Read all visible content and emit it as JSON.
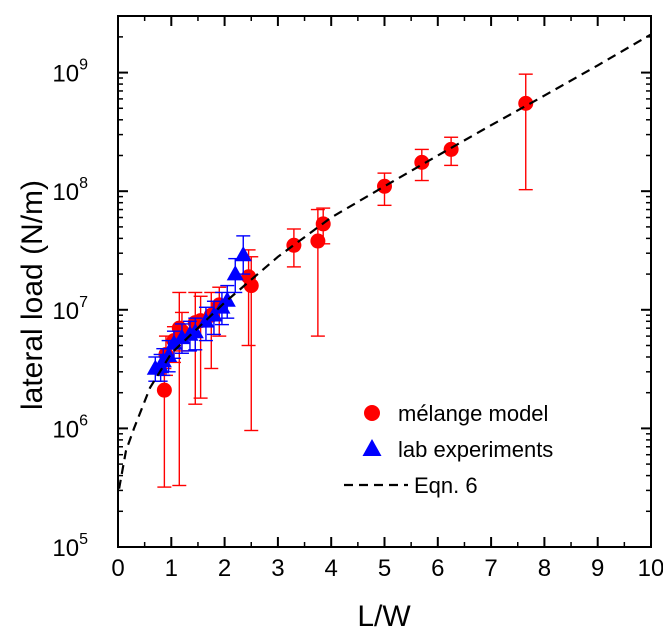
{
  "chart_data": {
    "type": "scatter",
    "xlabel": "L/W",
    "ylabel": "lateral load (N/m)",
    "xlim": [
      0,
      10
    ],
    "ylim": [
      100000,
      3000000000
    ],
    "yscale": "log",
    "x_ticks": [
      "0",
      "1",
      "2",
      "3",
      "4",
      "5",
      "6",
      "7",
      "8",
      "9",
      "10"
    ],
    "y_ticks": [
      {
        "base": "10",
        "exp": "5",
        "value": 100000
      },
      {
        "base": "10",
        "exp": "6",
        "value": 1000000
      },
      {
        "base": "10",
        "exp": "7",
        "value": 10000000
      },
      {
        "base": "10",
        "exp": "8",
        "value": 100000000
      },
      {
        "base": "10",
        "exp": "9",
        "value": 1000000000
      }
    ],
    "grid": false,
    "legend_position": "bottom-right",
    "series": [
      {
        "name": "mélange model",
        "marker": "circle",
        "color": "#ff0000",
        "points": [
          {
            "x": 0.87,
            "y": 2100000,
            "ylo": 320000,
            "yhi": 3200000
          },
          {
            "x": 0.9,
            "y": 4200000,
            "ylo": 2800000,
            "yhi": 6000000
          },
          {
            "x": 1.05,
            "y": 5500000,
            "ylo": 3600000,
            "yhi": 7200000
          },
          {
            "x": 1.15,
            "y": 7000000,
            "ylo": 330000,
            "yhi": 14000000
          },
          {
            "x": 1.2,
            "y": 6600000,
            "ylo": 4500000,
            "yhi": 9500000
          },
          {
            "x": 1.45,
            "y": 7800000,
            "ylo": 1600000,
            "yhi": 14000000
          },
          {
            "x": 1.55,
            "y": 8100000,
            "ylo": 1800000,
            "yhi": 13000000
          },
          {
            "x": 1.75,
            "y": 9000000,
            "ylo": 3200000,
            "yhi": 14000000
          },
          {
            "x": 1.9,
            "y": 11000000,
            "ylo": 6000000,
            "yhi": 15500000
          },
          {
            "x": 2.45,
            "y": 19000000,
            "ylo": 5000000,
            "yhi": 32000000
          },
          {
            "x": 2.5,
            "y": 16000000,
            "ylo": 960000,
            "yhi": 28000000
          },
          {
            "x": 3.3,
            "y": 35000000,
            "ylo": 23000000,
            "yhi": 48000000
          },
          {
            "x": 3.75,
            "y": 38000000,
            "ylo": 6000000,
            "yhi": 70000000
          },
          {
            "x": 3.85,
            "y": 53000000,
            "ylo": 36000000,
            "yhi": 72000000
          },
          {
            "x": 5.0,
            "y": 110000000,
            "ylo": 76000000,
            "yhi": 142000000
          },
          {
            "x": 5.7,
            "y": 175000000,
            "ylo": 123000000,
            "yhi": 225000000
          },
          {
            "x": 6.25,
            "y": 225000000,
            "ylo": 165000000,
            "yhi": 285000000
          },
          {
            "x": 7.65,
            "y": 550000000,
            "ylo": 103000000,
            "yhi": 970000000
          }
        ]
      },
      {
        "name": "lab experiments",
        "marker": "triangle",
        "color": "#0000ff",
        "points": [
          {
            "x": 0.7,
            "y": 3200000,
            "ylo": 2500000,
            "yhi": 4000000
          },
          {
            "x": 0.8,
            "y": 3300000,
            "ylo": 2500000,
            "yhi": 4200000
          },
          {
            "x": 0.85,
            "y": 3700000,
            "ylo": 2800000,
            "yhi": 4700000
          },
          {
            "x": 0.95,
            "y": 4100000,
            "ylo": 3000000,
            "yhi": 5500000
          },
          {
            "x": 1.05,
            "y": 5200000,
            "ylo": 3900000,
            "yhi": 6600000
          },
          {
            "x": 1.2,
            "y": 5800000,
            "ylo": 4300000,
            "yhi": 7600000
          },
          {
            "x": 1.35,
            "y": 6200000,
            "ylo": 4500000,
            "yhi": 8000000
          },
          {
            "x": 1.45,
            "y": 6500000,
            "ylo": 4600000,
            "yhi": 8500000
          },
          {
            "x": 1.65,
            "y": 8000000,
            "ylo": 5500000,
            "yhi": 10500000
          },
          {
            "x": 1.8,
            "y": 9000000,
            "ylo": 6200000,
            "yhi": 11800000
          },
          {
            "x": 1.95,
            "y": 10500000,
            "ylo": 7500000,
            "yhi": 14000000
          },
          {
            "x": 2.05,
            "y": 12000000,
            "ylo": 8500000,
            "yhi": 16000000
          },
          {
            "x": 2.2,
            "y": 20000000,
            "ylo": 14000000,
            "yhi": 27000000
          },
          {
            "x": 2.35,
            "y": 29000000,
            "ylo": 20000000,
            "yhi": 42000000
          }
        ]
      },
      {
        "name": "Eqn. 6",
        "marker": "dashed-line",
        "color": "#000000",
        "points": [
          {
            "x": 0.02,
            "y": 310000
          },
          {
            "x": 0.15,
            "y": 650000
          },
          {
            "x": 0.3,
            "y": 1000000
          },
          {
            "x": 0.6,
            "y": 2200000
          },
          {
            "x": 1.0,
            "y": 4300000
          },
          {
            "x": 2.0,
            "y": 11500000
          },
          {
            "x": 3.0,
            "y": 28000000
          },
          {
            "x": 4.0,
            "y": 60000000
          },
          {
            "x": 5.0,
            "y": 110000000
          },
          {
            "x": 6.0,
            "y": 200000000
          },
          {
            "x": 7.0,
            "y": 360000000
          },
          {
            "x": 8.0,
            "y": 640000000
          },
          {
            "x": 9.0,
            "y": 1150000000
          },
          {
            "x": 10.0,
            "y": 2100000000
          }
        ]
      }
    ]
  }
}
